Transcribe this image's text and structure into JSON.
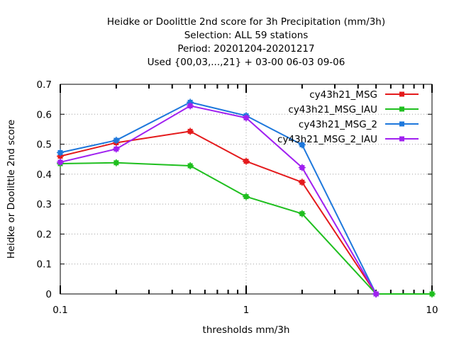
{
  "chart_data": {
    "type": "line",
    "title_lines": [
      "Heidke or Doolittle 2nd score  for 3h Precipitation (mm/3h)",
      "Selection: ALL      59 stations",
      "Period: 20201204-20201217",
      "Used {00,03,...,21} + 03-00 06-03 09-06"
    ],
    "xlabel": "thresholds mm/3h",
    "ylabel": "Heidke or Doolittle 2nd score",
    "x_scale": "log",
    "xlim": [
      0.1,
      10
    ],
    "ylim": [
      0,
      0.7
    ],
    "x_ticks": [
      0.1,
      1,
      10
    ],
    "x_tick_labels": [
      "0.1",
      "1",
      "10"
    ],
    "y_ticks": [
      0,
      0.1,
      0.2,
      0.3,
      0.4,
      0.5,
      0.6,
      0.7
    ],
    "y_tick_labels": [
      "0",
      "0.1",
      "0.2",
      "0.3",
      "0.4",
      "0.5",
      "0.6",
      "0.7"
    ],
    "grid": true,
    "legend_position": "top-right",
    "x": [
      0.1,
      0.2,
      0.5,
      1,
      2,
      5,
      10
    ],
    "series": [
      {
        "name": "cy43h21_MSG",
        "color": "#e41a1c",
        "values": [
          0.46,
          0.505,
          0.543,
          0.443,
          0.373,
          0.0,
          null
        ]
      },
      {
        "name": "cy43h21_MSG_IAU",
        "color": "#1fbf1f",
        "values": [
          0.435,
          0.438,
          0.428,
          0.325,
          0.268,
          0.0,
          0.0
        ]
      },
      {
        "name": "cy43h21_MSG_2",
        "color": "#1e78dc",
        "values": [
          0.472,
          0.513,
          0.64,
          0.595,
          0.498,
          0.0,
          null
        ]
      },
      {
        "name": "cy43h21_MSG_2_IAU",
        "color": "#a020f0",
        "values": [
          0.44,
          0.484,
          0.628,
          0.588,
          0.422,
          0.0,
          null
        ]
      }
    ]
  }
}
